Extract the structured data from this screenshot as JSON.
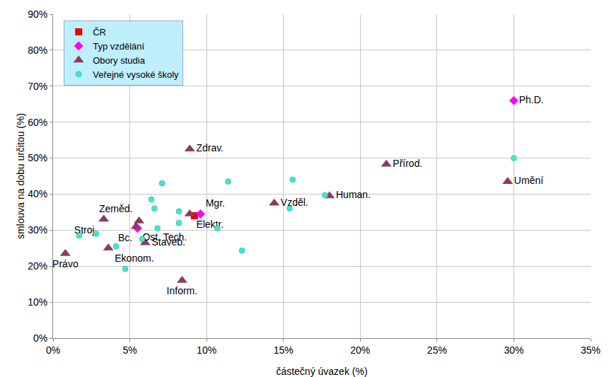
{
  "chart_data": {
    "type": "scatter",
    "x_label": "částečný úvazek (%)",
    "y_label": "smlouva na dobu určitou (%)",
    "xlim": [
      0,
      35
    ],
    "ylim": [
      0,
      90
    ],
    "xticks": [
      {
        "value": 0,
        "label": "0%"
      },
      {
        "value": 5,
        "label": "5%"
      },
      {
        "value": 10,
        "label": "10%"
      },
      {
        "value": 15,
        "label": "15%"
      },
      {
        "value": 20,
        "label": "20%"
      },
      {
        "value": 25,
        "label": "25%"
      },
      {
        "value": 30,
        "label": "30%"
      },
      {
        "value": 35,
        "label": "35%"
      }
    ],
    "yticks": [
      {
        "value": 0,
        "label": "0%"
      },
      {
        "value": 10,
        "label": "10%"
      },
      {
        "value": 20,
        "label": "20%"
      },
      {
        "value": 30,
        "label": "30%"
      },
      {
        "value": 40,
        "label": "40%"
      },
      {
        "value": 50,
        "label": "50%"
      },
      {
        "value": 60,
        "label": "60%"
      },
      {
        "value": 70,
        "label": "70%"
      },
      {
        "value": 80,
        "label": "80%"
      },
      {
        "value": 90,
        "label": "90%"
      }
    ],
    "grid": true,
    "legend": "upper left",
    "series": [
      {
        "name": "ČR",
        "color": "#ee0000",
        "marker": "square",
        "x": [
          9.2
        ],
        "values": [
          34
        ]
      },
      {
        "name": "Typ vzdělání",
        "color": "#ff00ff",
        "marker": "diamond",
        "x": [
          30.0,
          9.6,
          5.5
        ],
        "values": [
          66,
          34.5,
          30.5
        ],
        "labels": [
          "Ph.D.",
          "Mgr.",
          "Bc."
        ]
      },
      {
        "name": "Obory studia",
        "color": "#8e3a5e",
        "marker": "triangle",
        "x": [
          8.9,
          21.7,
          29.6,
          14.4,
          18.0,
          8.9,
          5.6,
          5.4,
          3.3,
          6.0,
          3.6,
          0.8,
          8.4
        ],
        "values": [
          52.5,
          48.3,
          43.5,
          37.5,
          39.5,
          34.5,
          32.5,
          31,
          33,
          26.5,
          25,
          23.5,
          16
        ],
        "labels": [
          "Zdrav.",
          "Přírod.",
          "Umění",
          "Vzděl.",
          "Human.",
          "Elektr.",
          "Zeměd.",
          "Ost. Tech.",
          "Stroj.",
          "Staveb.",
          "Ekonom.",
          "Právo",
          "Inform."
        ]
      },
      {
        "name": "Veřejné vysoké školy",
        "color": "#40e8d0",
        "marker": "circle",
        "x": [
          30.0,
          15.6,
          11.4,
          7.1,
          6.4,
          6.6,
          8.2,
          17.7,
          15.4,
          10.7,
          12.3,
          8.2,
          4.1,
          4.7,
          1.7,
          2.8,
          5.8,
          6.8
        ],
        "values": [
          50,
          44,
          43.5,
          43,
          38.5,
          36,
          35.2,
          39.7,
          36,
          30.5,
          24.3,
          32,
          25.5,
          19.2,
          28.5,
          29,
          27.5,
          30.5
        ]
      }
    ]
  }
}
